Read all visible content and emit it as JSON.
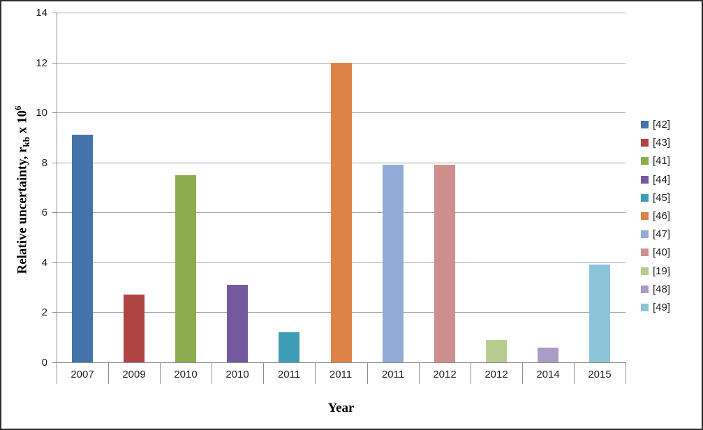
{
  "frame": {
    "background": "#ffffff",
    "border_color": "#2e2e2e"
  },
  "chart_data": {
    "type": "bar",
    "title": "",
    "xlabel": "Year",
    "ylabel_plain": "Relative uncertainty, rkb x 10^6",
    "ylabel_parts": {
      "prefix": "Relative uncertainty, r",
      "sub": "kb",
      "mid": " x 10",
      "sup": "6"
    },
    "ylim": [
      0,
      14
    ],
    "ytick_interval": 2,
    "yticks": [
      "0",
      "2",
      "4",
      "6",
      "8",
      "10",
      "12",
      "14"
    ],
    "grid": true,
    "gridline_color": "#a6a6a6",
    "axis_color": "#8f8f8f",
    "legend_position": "right",
    "categories": [
      "2007",
      "2009",
      "2010",
      "2010",
      "2011",
      "2011",
      "2011",
      "2012",
      "2012",
      "2014",
      "2015"
    ],
    "series": [
      {
        "name": "[42]",
        "category": "2007",
        "value": 9.1,
        "color": "#4473aa"
      },
      {
        "name": "[43]",
        "category": "2009",
        "value": 2.7,
        "color": "#af4442"
      },
      {
        "name": "[41]",
        "category": "2010",
        "value": 7.5,
        "color": "#8dab4f"
      },
      {
        "name": "[44]",
        "category": "2010",
        "value": 3.1,
        "color": "#74599e"
      },
      {
        "name": "[45]",
        "category": "2011",
        "value": 1.2,
        "color": "#3d9db5"
      },
      {
        "name": "[46]",
        "category": "2011",
        "value": 12.0,
        "color": "#de8245"
      },
      {
        "name": "[47]",
        "category": "2011",
        "value": 7.9,
        "color": "#93acd7"
      },
      {
        "name": "[40]",
        "category": "2012",
        "value": 7.9,
        "color": "#ce8e8c"
      },
      {
        "name": "[19]",
        "category": "2012",
        "value": 0.9,
        "color": "#b9cc90"
      },
      {
        "name": "[48]",
        "category": "2014",
        "value": 0.6,
        "color": "#ab9cc6"
      },
      {
        "name": "[49]",
        "category": "2015",
        "value": 3.9,
        "color": "#8cc4d8"
      }
    ]
  }
}
